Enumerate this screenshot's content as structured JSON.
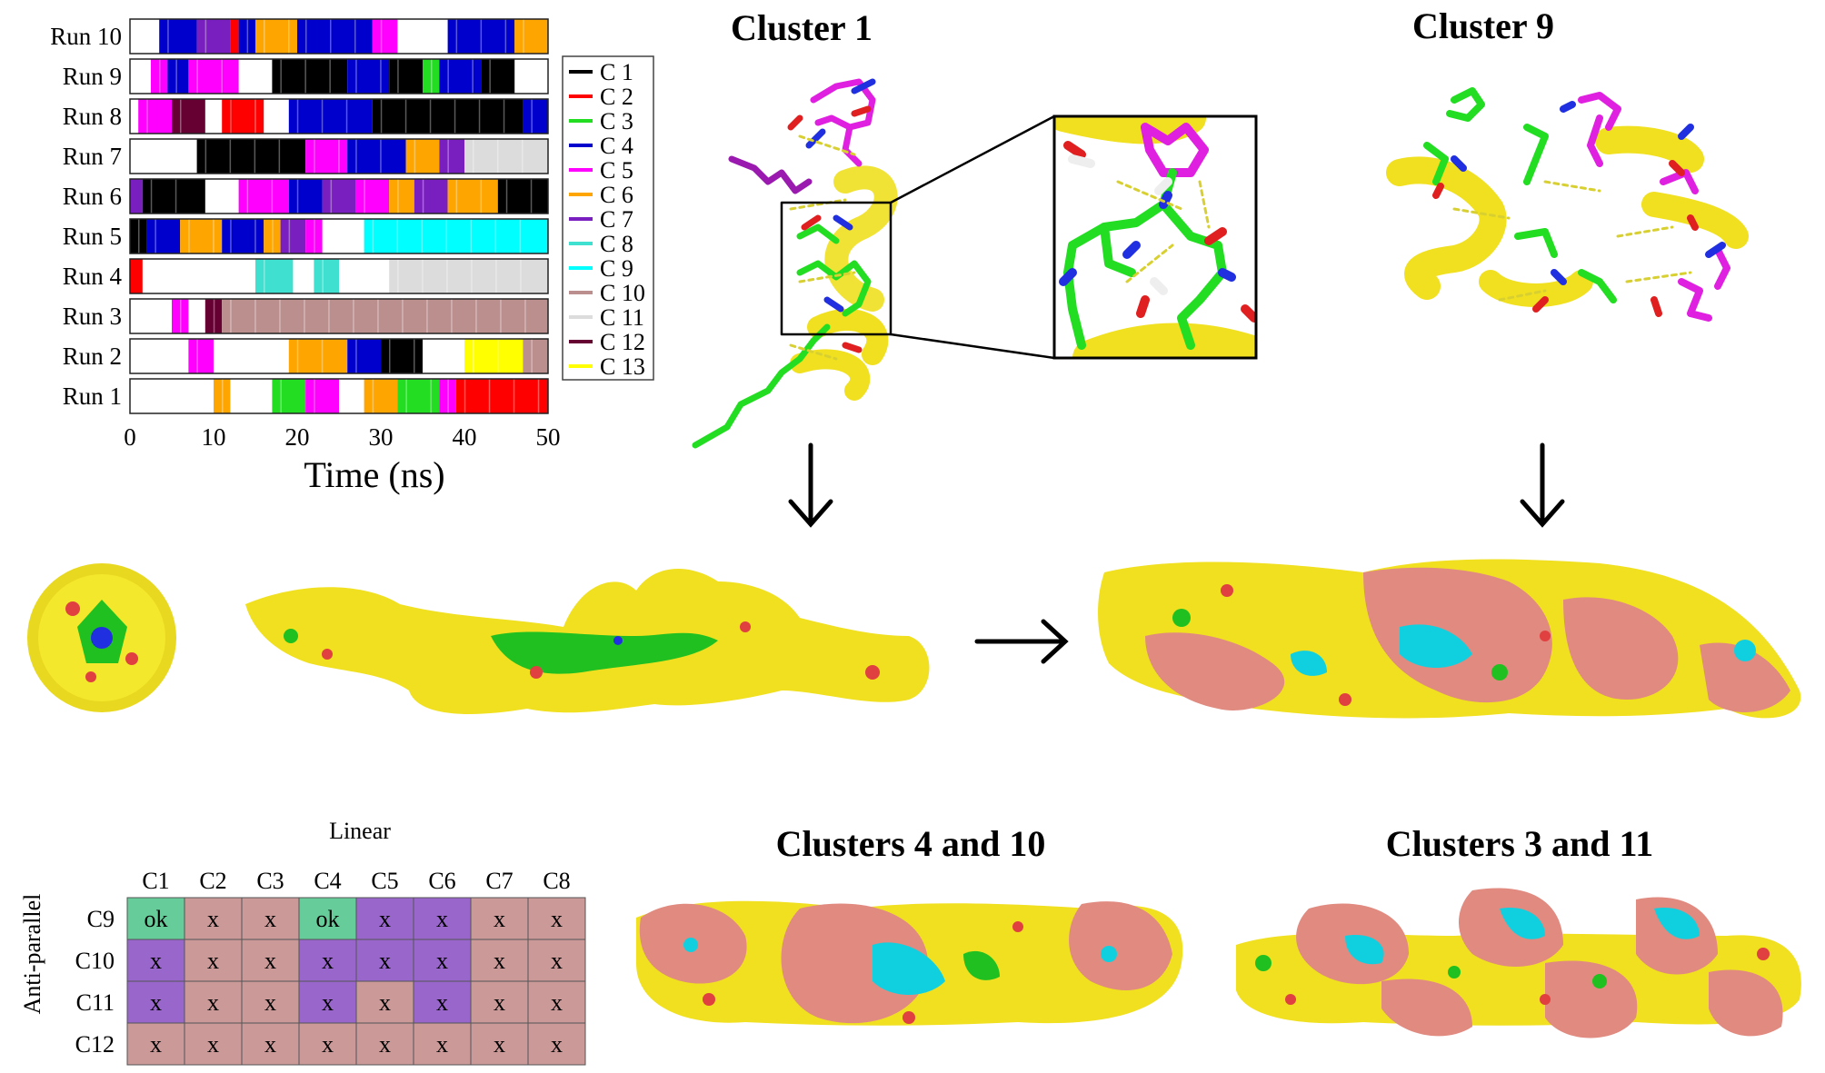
{
  "titles": {
    "cluster1": "Cluster 1",
    "cluster9": "Cluster 9",
    "clusters4and10": "Clusters 4 and 10",
    "clusters3and11": "Clusters 3 and 11"
  },
  "chart_data": {
    "type": "bar",
    "subtype": "cluster-timeline",
    "title": "",
    "xlabel": "Time (ns)",
    "ylabel": "",
    "xlim": [
      0,
      50
    ],
    "xticks": [
      "0",
      "10",
      "20",
      "30",
      "40",
      "50"
    ],
    "runs": [
      "Run 10",
      "Run 9",
      "Run 8",
      "Run 7",
      "Run 6",
      "Run 5",
      "Run 4",
      "Run 3",
      "Run 2",
      "Run 1"
    ],
    "legend_position": "right",
    "legend": [
      {
        "label": "C 1",
        "color": "#000000"
      },
      {
        "label": "C 2",
        "color": "#ff0000"
      },
      {
        "label": "C 3",
        "color": "#22dd22"
      },
      {
        "label": "C 4",
        "color": "#0000cc"
      },
      {
        "label": "C 5",
        "color": "#ff00ff"
      },
      {
        "label": "C 6",
        "color": "#ffa500"
      },
      {
        "label": "C 7",
        "color": "#7a1fbf"
      },
      {
        "label": "C 8",
        "color": "#40e0d0"
      },
      {
        "label": "C 9",
        "color": "#00ffff"
      },
      {
        "label": "C 10",
        "color": "#bc8f8f"
      },
      {
        "label": "C 11",
        "color": "#dcdcdc"
      },
      {
        "label": "C 12",
        "color": "#660033"
      },
      {
        "label": "C 13",
        "color": "#ffff00"
      }
    ],
    "segments": {
      "Run 10": [
        [
          0,
          3.5,
          "none"
        ],
        [
          3.5,
          8,
          "C 4"
        ],
        [
          8,
          12,
          "C 7"
        ],
        [
          12,
          13,
          "C 2"
        ],
        [
          13,
          15,
          "C 4"
        ],
        [
          15,
          20,
          "C 6"
        ],
        [
          20,
          29,
          "C 4"
        ],
        [
          29,
          32,
          "C 5"
        ],
        [
          32,
          38,
          "none"
        ],
        [
          38,
          46,
          "C 4"
        ],
        [
          46,
          50,
          "C 6"
        ]
      ],
      "Run 9": [
        [
          0,
          2.5,
          "none"
        ],
        [
          2.5,
          4.5,
          "C 5"
        ],
        [
          4.5,
          7,
          "C 4"
        ],
        [
          7,
          13,
          "C 5"
        ],
        [
          13,
          17,
          "none"
        ],
        [
          17,
          26,
          "C 1"
        ],
        [
          26,
          31,
          "C 4"
        ],
        [
          31,
          35,
          "C 1"
        ],
        [
          35,
          37,
          "C 3"
        ],
        [
          37,
          42,
          "C 4"
        ],
        [
          42,
          46,
          "C 1"
        ],
        [
          46,
          50,
          "none"
        ]
      ],
      "Run 8": [
        [
          0,
          1,
          "none"
        ],
        [
          1,
          5,
          "C 5"
        ],
        [
          5,
          9,
          "C 12"
        ],
        [
          9,
          11,
          "none"
        ],
        [
          11,
          16,
          "C 2"
        ],
        [
          16,
          19,
          "none"
        ],
        [
          19,
          29,
          "C 4"
        ],
        [
          29,
          47,
          "C 1"
        ],
        [
          47,
          50,
          "C 4"
        ]
      ],
      "Run 7": [
        [
          0,
          8,
          "none"
        ],
        [
          8,
          21,
          "C 1"
        ],
        [
          21,
          26,
          "C 5"
        ],
        [
          26,
          33,
          "C 4"
        ],
        [
          33,
          37,
          "C 6"
        ],
        [
          37,
          40,
          "C 7"
        ],
        [
          40,
          50,
          "C 11"
        ]
      ],
      "Run 6": [
        [
          0,
          1.5,
          "C 7"
        ],
        [
          1.5,
          9,
          "C 1"
        ],
        [
          9,
          13,
          "none"
        ],
        [
          13,
          19,
          "C 5"
        ],
        [
          19,
          23,
          "C 4"
        ],
        [
          23,
          27,
          "C 7"
        ],
        [
          27,
          31,
          "C 5"
        ],
        [
          31,
          34,
          "C 6"
        ],
        [
          34,
          38,
          "C 7"
        ],
        [
          38,
          44,
          "C 6"
        ],
        [
          44,
          50,
          "C 1"
        ]
      ],
      "Run 5": [
        [
          0,
          2,
          "C 1"
        ],
        [
          2,
          6,
          "C 4"
        ],
        [
          6,
          11,
          "C 6"
        ],
        [
          11,
          16,
          "C 4"
        ],
        [
          16,
          18,
          "C 6"
        ],
        [
          18,
          21,
          "C 7"
        ],
        [
          21,
          23,
          "C 5"
        ],
        [
          23,
          28,
          "none"
        ],
        [
          28,
          50,
          "C 9"
        ]
      ],
      "Run 4": [
        [
          0,
          1.5,
          "C 2"
        ],
        [
          1.5,
          15,
          "none"
        ],
        [
          15,
          19.5,
          "C 8"
        ],
        [
          19.5,
          22,
          "none"
        ],
        [
          22,
          25,
          "C 8"
        ],
        [
          25,
          31,
          "none"
        ],
        [
          31,
          50,
          "C 11"
        ]
      ],
      "Run 3": [
        [
          0,
          5,
          "none"
        ],
        [
          5,
          7,
          "C 5"
        ],
        [
          7,
          9,
          "none"
        ],
        [
          9,
          11,
          "C 12"
        ],
        [
          11,
          50,
          "C 10"
        ]
      ],
      "Run 2": [
        [
          0,
          7,
          "none"
        ],
        [
          7,
          10,
          "C 5"
        ],
        [
          10,
          19,
          "none"
        ],
        [
          19,
          26,
          "C 6"
        ],
        [
          26,
          30,
          "C 4"
        ],
        [
          30,
          35,
          "C 1"
        ],
        [
          35,
          40,
          "none"
        ],
        [
          40,
          47,
          "C 13"
        ],
        [
          47,
          50,
          "C 10"
        ]
      ],
      "Run 1": [
        [
          0,
          10,
          "none"
        ],
        [
          10,
          12,
          "C 6"
        ],
        [
          12,
          17,
          "none"
        ],
        [
          17,
          21,
          "C 3"
        ],
        [
          21,
          25,
          "C 5"
        ],
        [
          25,
          28,
          "none"
        ],
        [
          28,
          32,
          "C 6"
        ],
        [
          32,
          37,
          "C 3"
        ],
        [
          37,
          39,
          "C 5"
        ],
        [
          39,
          50,
          "C 2"
        ]
      ]
    },
    "table": {
      "col_title": "Linear",
      "row_title": "Anti-parallel",
      "columns": [
        "C1",
        "C2",
        "C3",
        "C4",
        "C5",
        "C6",
        "C7",
        "C8"
      ],
      "rows": [
        {
          "label": "C9",
          "cells": [
            "ok",
            "x",
            "x",
            "ok",
            "x",
            "x",
            "x",
            "x"
          ],
          "colors": [
            "#66cc99",
            "#cc9999",
            "#cc9999",
            "#66cc99",
            "#9966cc",
            "#9966cc",
            "#cc9999",
            "#cc9999"
          ]
        },
        {
          "label": "C10",
          "cells": [
            "x",
            "x",
            "x",
            "x",
            "x",
            "x",
            "x",
            "x"
          ],
          "colors": [
            "#9966cc",
            "#cc9999",
            "#cc9999",
            "#9966cc",
            "#9966cc",
            "#9966cc",
            "#cc9999",
            "#cc9999"
          ]
        },
        {
          "label": "C11",
          "cells": [
            "x",
            "x",
            "x",
            "x",
            "x",
            "x",
            "x",
            "x"
          ],
          "colors": [
            "#9966cc",
            "#cc9999",
            "#cc9999",
            "#9966cc",
            "#cc9999",
            "#9966cc",
            "#cc9999",
            "#cc9999"
          ]
        },
        {
          "label": "C12",
          "cells": [
            "x",
            "x",
            "x",
            "x",
            "x",
            "x",
            "x",
            "x"
          ],
          "colors": [
            "#cc9999",
            "#cc9999",
            "#cc9999",
            "#cc9999",
            "#cc9999",
            "#cc9999",
            "#cc9999",
            "#cc9999"
          ]
        }
      ]
    }
  },
  "colors": {
    "surface_yellow": "#f0e020",
    "surface_pink": "#e08a80",
    "surface_green": "#20c020",
    "surface_cyan": "#10d0e0",
    "surface_red": "#e04040",
    "table_border": "#555555"
  }
}
